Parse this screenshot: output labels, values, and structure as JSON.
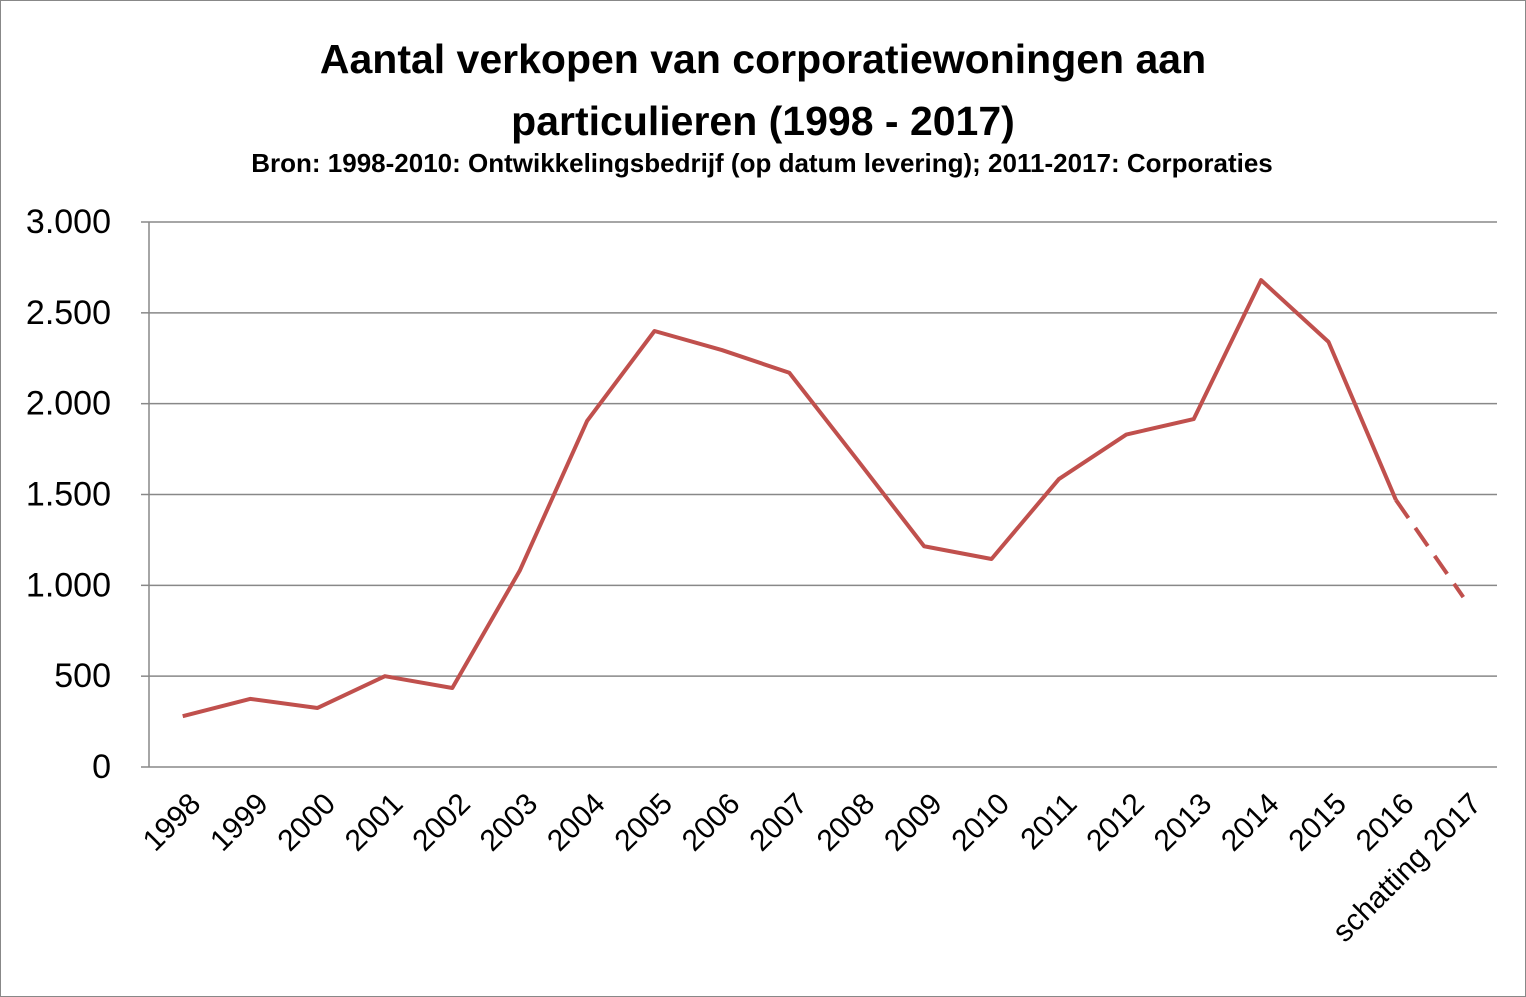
{
  "chart_data": {
    "type": "line",
    "title": "Aantal verkopen van corporatiewoningen aan particulieren (1998 - 2017)",
    "subtitle": "Bron: 1998-2010: Ontwikkelingsbedrijf (op datum levering); 2011-2017: Corporaties",
    "categories": [
      "1998",
      "1999",
      "2000",
      "2001",
      "2002",
      "2003",
      "2004",
      "2005",
      "2006",
      "2007",
      "2008",
      "2009",
      "2010",
      "2011",
      "2012",
      "2013",
      "2014",
      "2015",
      "2016",
      "schatting 2017"
    ],
    "series": [
      {
        "color": "#c0504d",
        "values": [
          280,
          375,
          325,
          500,
          435,
          1080,
          1905,
          2400,
          2295,
          2170,
          1695,
          1215,
          1145,
          1585,
          1830,
          1915,
          2680,
          2340,
          1470,
          935
        ]
      }
    ],
    "dashed_last_segment": true,
    "ylim": [
      0,
      3000
    ],
    "yticks": [
      0,
      500,
      {
        "value": 1000,
        "label": "1.000"
      },
      {
        "value": 1500,
        "label": "1.500"
      },
      {
        "value": 2000,
        "label": "2.000"
      },
      {
        "value": 2500,
        "label": "2.500"
      },
      {
        "value": 3000,
        "label": "3.000"
      }
    ],
    "grid": true
  }
}
